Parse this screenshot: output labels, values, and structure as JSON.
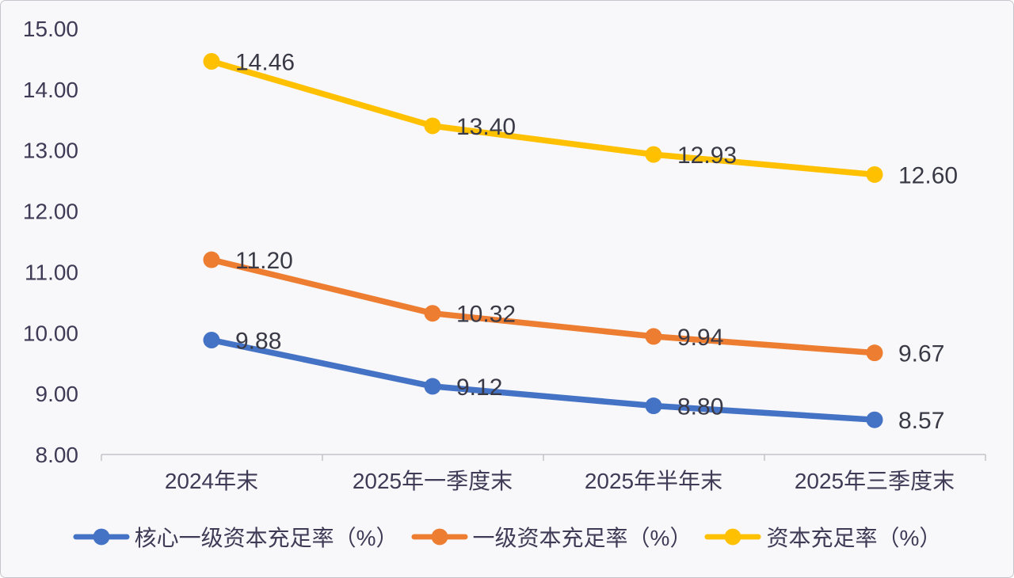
{
  "chart_data": {
    "type": "line",
    "categories": [
      "2024年末",
      "2025年一季度末",
      "2025年半年末",
      "2025年三季度末"
    ],
    "series": [
      {
        "name": "核心一级资本充足率（%）",
        "color": "#4472C4",
        "values": [
          9.88,
          9.12,
          8.8,
          8.57
        ],
        "labels": [
          "9.88",
          "9.12",
          "8.80",
          "8.57"
        ]
      },
      {
        "name": "一级资本充足率（%）",
        "color": "#ED7D31",
        "values": [
          11.2,
          10.32,
          9.94,
          9.67
        ],
        "labels": [
          "11.20",
          "10.32",
          "9.94",
          "9.67"
        ]
      },
      {
        "name": "资本充足率（%）",
        "color": "#FFC000",
        "values": [
          14.46,
          13.4,
          12.93,
          12.6
        ],
        "labels": [
          "14.46",
          "13.40",
          "12.93",
          "12.60"
        ]
      }
    ],
    "yticks": [
      {
        "value": 15,
        "label": "15.00"
      },
      {
        "value": 14,
        "label": "14.00"
      },
      {
        "value": 13,
        "label": "13.00"
      },
      {
        "value": 12,
        "label": "12.00"
      },
      {
        "value": 11,
        "label": "11.00"
      },
      {
        "value": 10,
        "label": "10.00"
      },
      {
        "value": 9,
        "label": "9.00"
      },
      {
        "value": 8,
        "label": "8.00"
      }
    ],
    "ylim": [
      8,
      15
    ],
    "grid": false,
    "legend_position": "bottom",
    "axis_color": "#c3c3c9",
    "text_color": "#3f3a55",
    "datalabel_color": "#3a3a46"
  }
}
